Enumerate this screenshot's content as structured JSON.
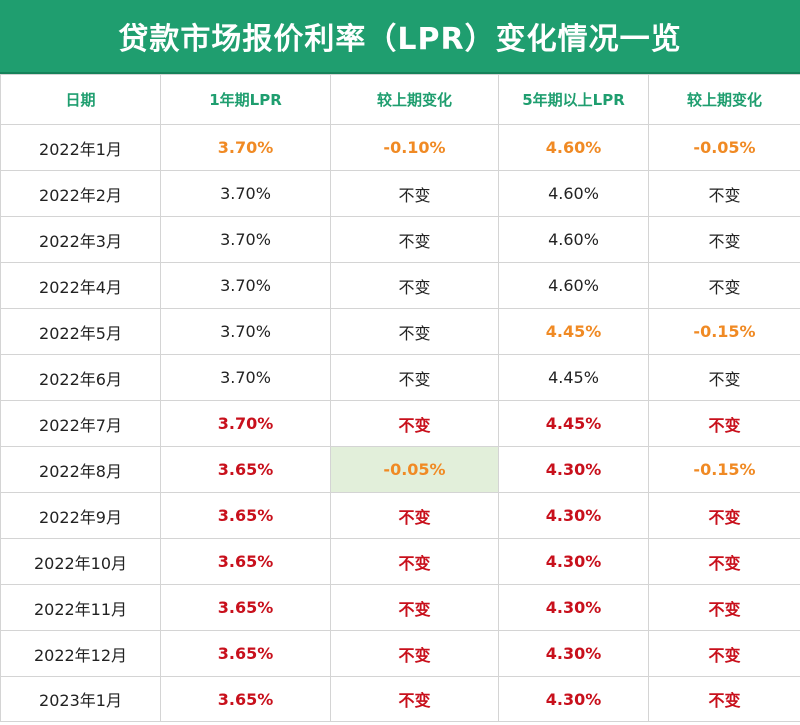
{
  "title": "贷款市场报价利率（LPR）变化情况一览",
  "colors": {
    "header_green": "#1f9e6f",
    "orange": "#f08a24",
    "red": "#c8101c",
    "highlight_bg": "#e2efda"
  },
  "headers": [
    "日期",
    "1年期LPR",
    "较上期变化",
    "5年期以上LPR",
    "较上期变化"
  ],
  "rows": [
    {
      "date": "2022年1月",
      "lpr1y": "3.70%",
      "chg1y": "-0.10%",
      "lpr5y": "4.60%",
      "chg5y": "-0.05%",
      "style": [
        "",
        "orange",
        "orange",
        "orange",
        "orange"
      ]
    },
    {
      "date": "2022年2月",
      "lpr1y": "3.70%",
      "chg1y": "不变",
      "lpr5y": "4.60%",
      "chg5y": "不变",
      "style": [
        "",
        "",
        "",
        "",
        ""
      ]
    },
    {
      "date": "2022年3月",
      "lpr1y": "3.70%",
      "chg1y": "不变",
      "lpr5y": "4.60%",
      "chg5y": "不变",
      "style": [
        "",
        "",
        "",
        "",
        ""
      ]
    },
    {
      "date": "2022年4月",
      "lpr1y": "3.70%",
      "chg1y": "不变",
      "lpr5y": "4.60%",
      "chg5y": "不变",
      "style": [
        "",
        "",
        "",
        "",
        ""
      ]
    },
    {
      "date": "2022年5月",
      "lpr1y": "3.70%",
      "chg1y": "不变",
      "lpr5y": "4.45%",
      "chg5y": "-0.15%",
      "style": [
        "",
        "",
        "",
        "orange",
        "orange"
      ]
    },
    {
      "date": "2022年6月",
      "lpr1y": "3.70%",
      "chg1y": "不变",
      "lpr5y": "4.45%",
      "chg5y": "不变",
      "style": [
        "",
        "",
        "",
        "",
        ""
      ]
    },
    {
      "date": "2022年7月",
      "lpr1y": "3.70%",
      "chg1y": "不变",
      "lpr5y": "4.45%",
      "chg5y": "不变",
      "style": [
        "",
        "red",
        "red",
        "red",
        "red"
      ]
    },
    {
      "date": "2022年8月",
      "lpr1y": "3.65%",
      "chg1y": "-0.05%",
      "lpr5y": "4.30%",
      "chg5y": "-0.15%",
      "style": [
        "",
        "red",
        "orange hl",
        "red",
        "orange"
      ]
    },
    {
      "date": "2022年9月",
      "lpr1y": "3.65%",
      "chg1y": "不变",
      "lpr5y": "4.30%",
      "chg5y": "不变",
      "style": [
        "",
        "red",
        "red",
        "red",
        "red"
      ]
    },
    {
      "date": "2022年10月",
      "lpr1y": "3.65%",
      "chg1y": "不变",
      "lpr5y": "4.30%",
      "chg5y": "不变",
      "style": [
        "",
        "red",
        "red",
        "red",
        "red"
      ]
    },
    {
      "date": "2022年11月",
      "lpr1y": "3.65%",
      "chg1y": "不变",
      "lpr5y": "4.30%",
      "chg5y": "不变",
      "style": [
        "",
        "red",
        "red",
        "red",
        "red"
      ]
    },
    {
      "date": "2022年12月",
      "lpr1y": "3.65%",
      "chg1y": "不变",
      "lpr5y": "4.30%",
      "chg5y": "不变",
      "style": [
        "",
        "red",
        "red",
        "red",
        "red"
      ]
    },
    {
      "date": "2023年1月",
      "lpr1y": "3.65%",
      "chg1y": "不变",
      "lpr5y": "4.30%",
      "chg5y": "不变",
      "style": [
        "",
        "red",
        "red",
        "red",
        "red"
      ]
    }
  ]
}
